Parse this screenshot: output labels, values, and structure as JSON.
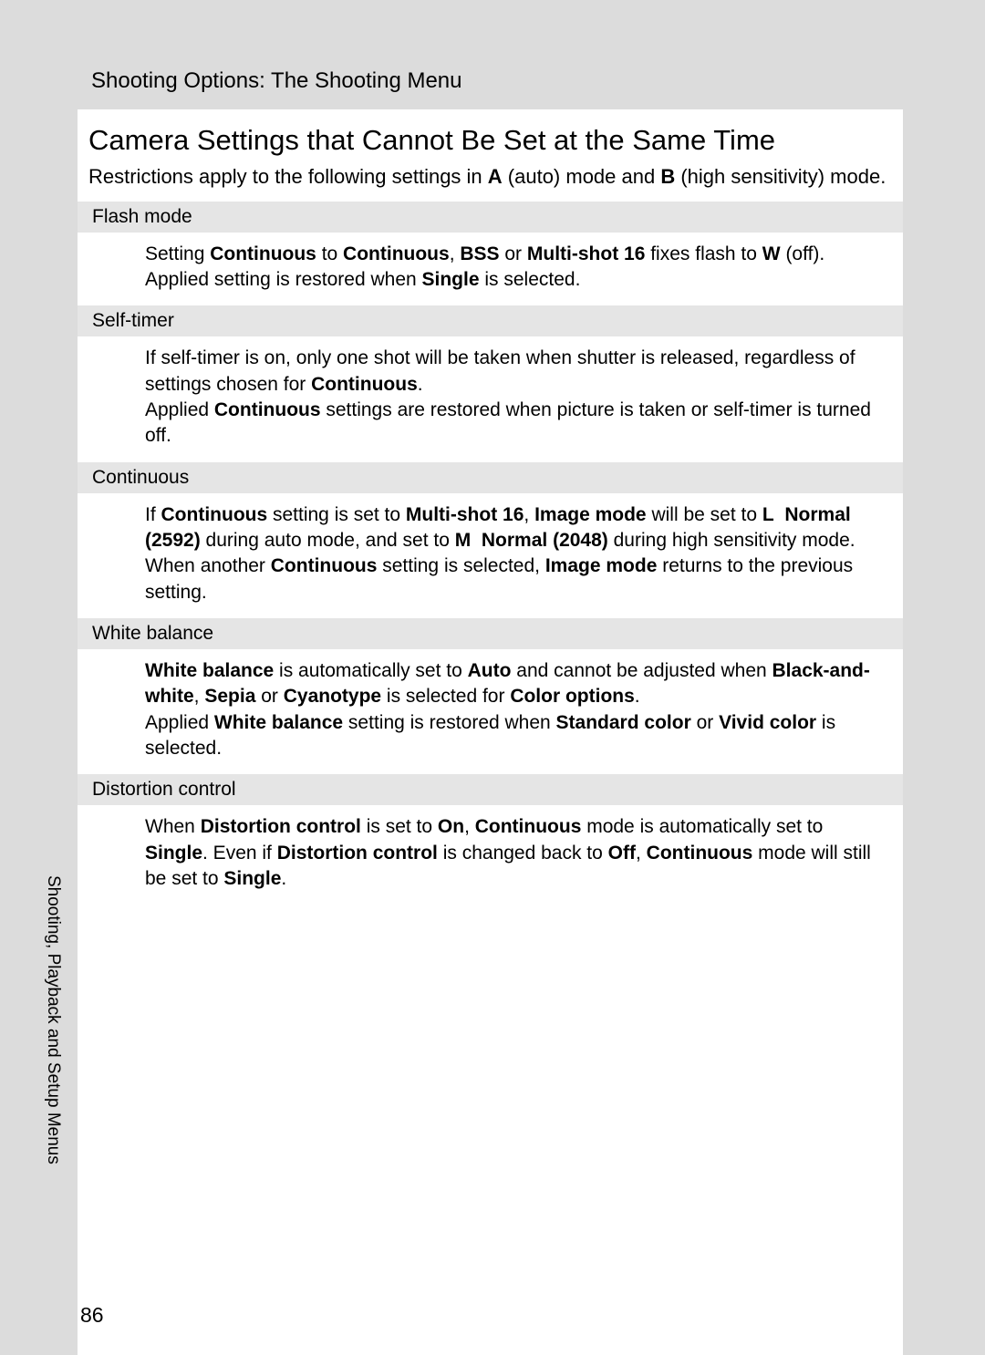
{
  "header": "Shooting Options: The Shooting Menu",
  "title": "Camera Settings that Cannot Be Set at the Same Time",
  "intro_parts": {
    "p1": "Restrictions apply to the following settings in ",
    "b1": "A",
    "p2": " (auto) mode and ",
    "b2": "B",
    "p3": " (high sensitivity) mode."
  },
  "sections": [
    {
      "head": "Flash mode",
      "body": "Setting <b>Continuous</b> to <b>Continuous</b>, <b>BSS</b> or <b>Multi-shot 16</b> fixes flash to <b>W</b> (off). Applied setting is restored when <b>Single</b> is selected."
    },
    {
      "head": "Self-timer",
      "body": "If self-timer is on, only one shot will be taken when shutter is released, regardless of settings chosen for <b>Continuous</b>.<br>Applied <b>Continuous</b> settings are restored when picture is taken or self-timer is turned off."
    },
    {
      "head": "Continuous",
      "body": "If <b>Continuous</b> setting is set to <b>Multi-shot 16</b>, <b>Image mode</b> will be set to <b>L&nbsp;&nbsp;Normal (2592)</b> during auto mode, and set to <b>M&nbsp;&nbsp;Normal (2048)</b> during high sensitivity mode.<br>When another <b>Continuous</b> setting is selected, <b>Image mode</b> returns to the previous setting."
    },
    {
      "head": "White balance",
      "body": "<b>White balance</b> is automatically set to <b>Auto</b> and cannot be adjusted when <b>Black-and-white</b>, <b>Sepia</b> or <b>Cyanotype</b> is selected for <b>Color options</b>.<br>Applied <b>White balance</b> setting is restored when <b>Standard color</b> or <b>Vivid color</b> is selected."
    },
    {
      "head": "Distortion control",
      "body": "When <b>Distortion control</b> is set to <b>On</b>, <b>Continuous</b> mode is automatically set to <b>Single</b>. Even if <b>Distortion control</b> is changed back to <b>Off</b>, <b>Continuous</b> mode will still be set to <b>Single</b>."
    }
  ],
  "side_label": "Shooting, Playback and Setup Menus",
  "page_number": "86",
  "colors": {
    "page_bg": "#ffffff",
    "outer_bg": "#dcdcdc",
    "section_head_bg": "#e5e5e5",
    "text": "#000000"
  },
  "typography": {
    "title_fontsize": 31,
    "header_fontsize": 24,
    "intro_fontsize": 22,
    "section_head_fontsize": 21,
    "body_fontsize": 21,
    "side_fontsize": 19,
    "page_num_fontsize": 23
  }
}
